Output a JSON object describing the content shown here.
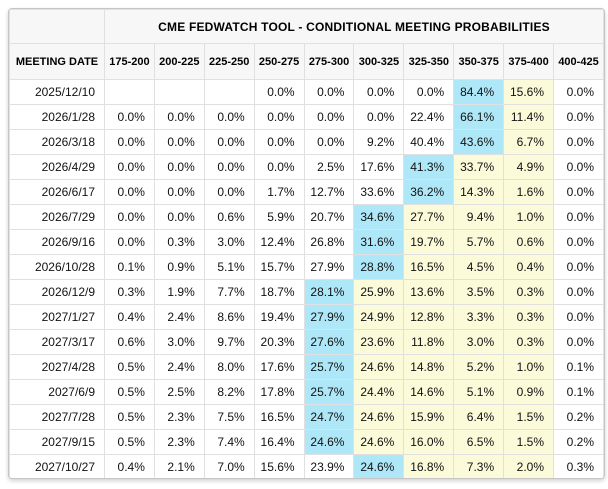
{
  "title": "CME FEDWATCH TOOL - CONDITIONAL MEETING PROBABILITIES",
  "columns": {
    "meeting_date_label": "MEETING DATE",
    "rate_ranges": [
      "175-200",
      "200-225",
      "225-250",
      "250-275",
      "275-300",
      "300-325",
      "325-350",
      "350-375",
      "375-400",
      "400-425"
    ]
  },
  "rows": [
    {
      "date": "2025/12/10",
      "values": [
        "",
        "",
        "",
        "0.0%",
        "0.0%",
        "0.0%",
        "0.0%",
        "84.4%",
        "15.6%",
        "0.0%"
      ],
      "blue": 7,
      "yellow": [
        8
      ]
    },
    {
      "date": "2026/1/28",
      "values": [
        "0.0%",
        "0.0%",
        "0.0%",
        "0.0%",
        "0.0%",
        "0.0%",
        "22.4%",
        "66.1%",
        "11.4%",
        "0.0%"
      ],
      "blue": 7,
      "yellow": [
        8
      ]
    },
    {
      "date": "2026/3/18",
      "values": [
        "0.0%",
        "0.0%",
        "0.0%",
        "0.0%",
        "0.0%",
        "9.2%",
        "40.4%",
        "43.6%",
        "6.7%",
        "0.0%"
      ],
      "blue": 7,
      "yellow": [
        8
      ]
    },
    {
      "date": "2026/4/29",
      "values": [
        "0.0%",
        "0.0%",
        "0.0%",
        "0.0%",
        "2.5%",
        "17.6%",
        "41.3%",
        "33.7%",
        "4.9%",
        "0.0%"
      ],
      "blue": 6,
      "yellow": [
        7,
        8
      ]
    },
    {
      "date": "2026/6/17",
      "values": [
        "0.0%",
        "0.0%",
        "0.0%",
        "1.7%",
        "12.7%",
        "33.6%",
        "36.2%",
        "14.3%",
        "1.6%",
        "0.0%"
      ],
      "blue": 6,
      "yellow": [
        7,
        8
      ]
    },
    {
      "date": "2026/7/29",
      "values": [
        "0.0%",
        "0.0%",
        "0.6%",
        "5.9%",
        "20.7%",
        "34.6%",
        "27.7%",
        "9.4%",
        "1.0%",
        "0.0%"
      ],
      "blue": 5,
      "yellow": [
        6,
        7,
        8
      ]
    },
    {
      "date": "2026/9/16",
      "values": [
        "0.0%",
        "0.3%",
        "3.0%",
        "12.4%",
        "26.8%",
        "31.6%",
        "19.7%",
        "5.7%",
        "0.6%",
        "0.0%"
      ],
      "blue": 5,
      "yellow": [
        6,
        7,
        8
      ]
    },
    {
      "date": "2026/10/28",
      "values": [
        "0.1%",
        "0.9%",
        "5.1%",
        "15.7%",
        "27.9%",
        "28.8%",
        "16.5%",
        "4.5%",
        "0.4%",
        "0.0%"
      ],
      "blue": 5,
      "yellow": [
        6,
        7,
        8
      ]
    },
    {
      "date": "2026/12/9",
      "values": [
        "0.3%",
        "1.9%",
        "7.7%",
        "18.7%",
        "28.1%",
        "25.9%",
        "13.6%",
        "3.5%",
        "0.3%",
        "0.0%"
      ],
      "blue": 4,
      "yellow": [
        5,
        6,
        7,
        8
      ]
    },
    {
      "date": "2027/1/27",
      "values": [
        "0.4%",
        "2.4%",
        "8.6%",
        "19.4%",
        "27.9%",
        "24.9%",
        "12.8%",
        "3.3%",
        "0.3%",
        "0.0%"
      ],
      "blue": 4,
      "yellow": [
        5,
        6,
        7,
        8
      ]
    },
    {
      "date": "2027/3/17",
      "values": [
        "0.6%",
        "3.0%",
        "9.7%",
        "20.3%",
        "27.6%",
        "23.6%",
        "11.8%",
        "3.0%",
        "0.3%",
        "0.0%"
      ],
      "blue": 4,
      "yellow": [
        5,
        6,
        7,
        8
      ]
    },
    {
      "date": "2027/4/28",
      "values": [
        "0.5%",
        "2.4%",
        "8.0%",
        "17.6%",
        "25.7%",
        "24.6%",
        "14.8%",
        "5.2%",
        "1.0%",
        "0.1%"
      ],
      "blue": 4,
      "yellow": [
        5,
        6,
        7,
        8
      ]
    },
    {
      "date": "2027/6/9",
      "values": [
        "0.5%",
        "2.5%",
        "8.2%",
        "17.8%",
        "25.7%",
        "24.4%",
        "14.6%",
        "5.1%",
        "0.9%",
        "0.1%"
      ],
      "blue": 4,
      "yellow": [
        5,
        6,
        7,
        8
      ]
    },
    {
      "date": "2027/7/28",
      "values": [
        "0.5%",
        "2.3%",
        "7.5%",
        "16.5%",
        "24.7%",
        "24.6%",
        "15.9%",
        "6.4%",
        "1.5%",
        "0.2%"
      ],
      "blue": 4,
      "yellow": [
        5,
        6,
        7,
        8
      ]
    },
    {
      "date": "2027/9/15",
      "values": [
        "0.5%",
        "2.3%",
        "7.4%",
        "16.4%",
        "24.6%",
        "24.6%",
        "16.0%",
        "6.5%",
        "1.5%",
        "0.2%"
      ],
      "blue": 4,
      "yellow": [
        5,
        6,
        7,
        8
      ]
    },
    {
      "date": "2027/10/27",
      "values": [
        "0.4%",
        "2.1%",
        "7.0%",
        "15.6%",
        "23.9%",
        "24.6%",
        "16.8%",
        "7.3%",
        "2.0%",
        "0.3%"
      ],
      "blue": 5,
      "yellow": [
        6,
        7,
        8
      ]
    }
  ],
  "colors": {
    "highlight_blue": "#aee8f8",
    "highlight_yellow": "#fbfad9",
    "header_bg": "#f7f7f7",
    "cell_border": "#e0e0e0",
    "outer_border": "#c6c6c6"
  }
}
